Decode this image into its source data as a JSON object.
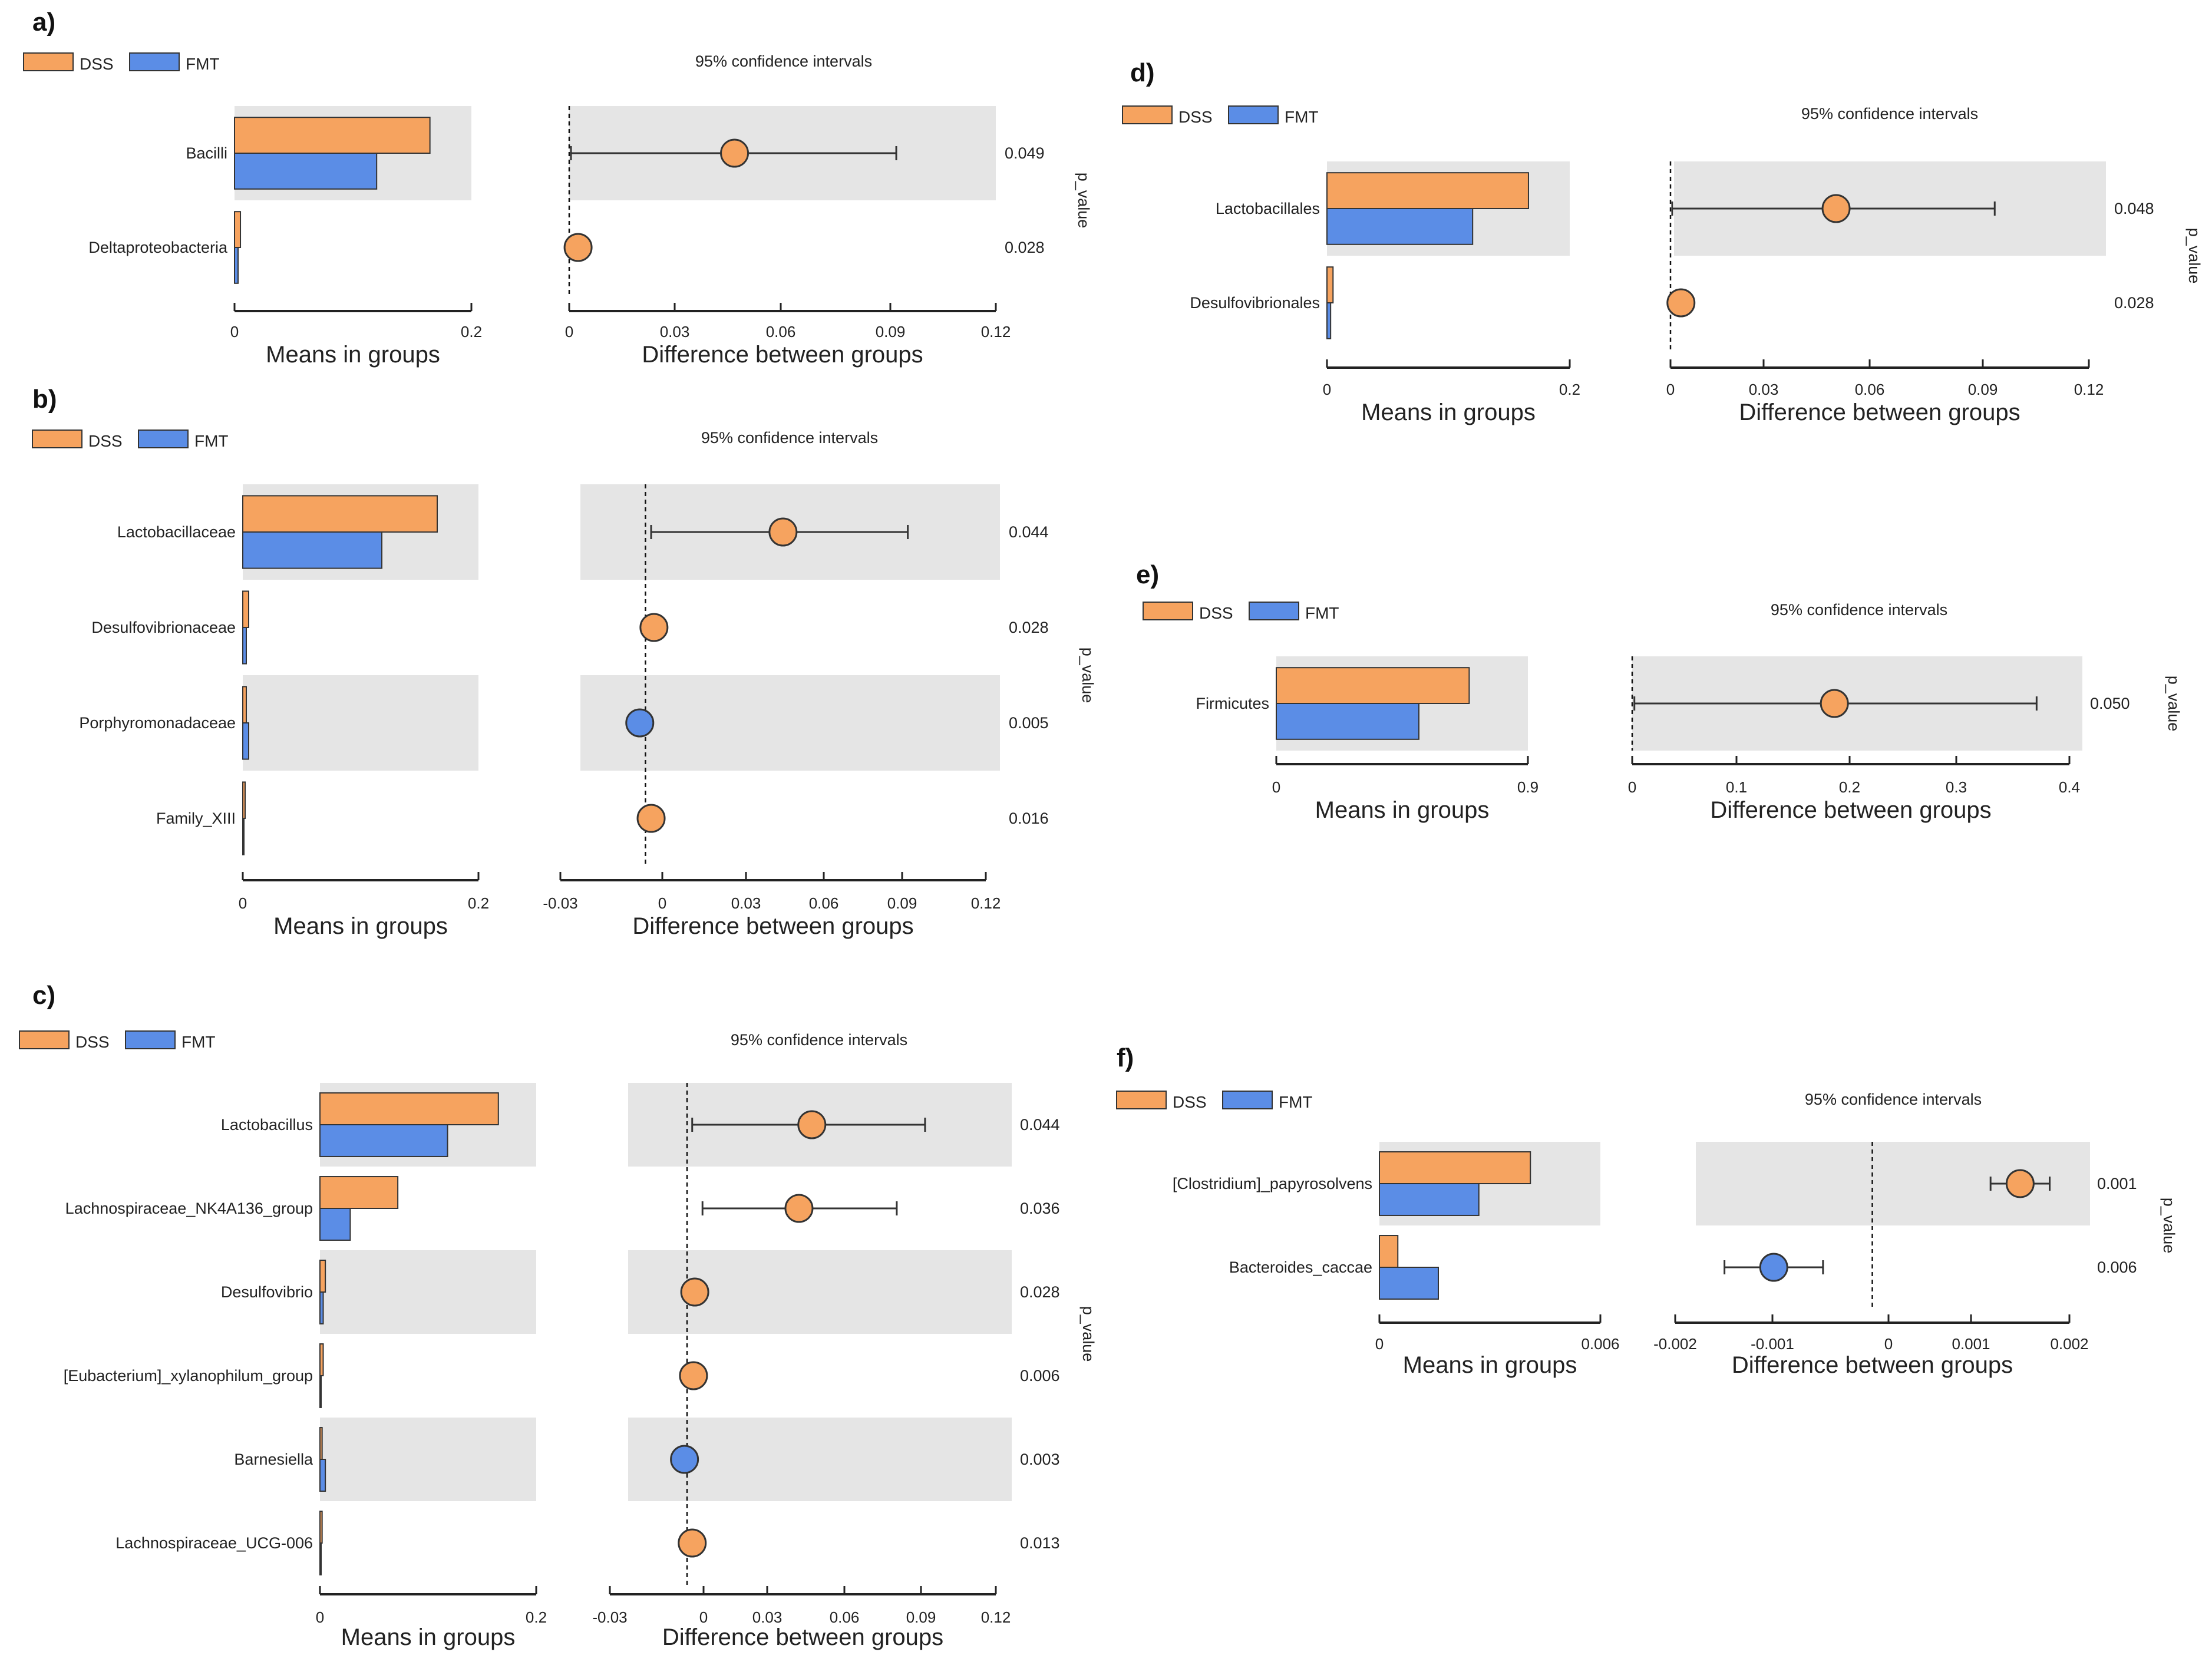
{
  "legend": {
    "dss": "DSS",
    "fmt": "FMT"
  },
  "colors": {
    "dss": "#f6a35f",
    "fmt": "#5b8de6",
    "band": "#e5e5e5",
    "axis": "#222222"
  },
  "common": {
    "ci_title": "95% confidence intervals",
    "means_xlabel": "Means in groups",
    "diff_xlabel": "Difference between groups",
    "pvalue_label": "p_value"
  },
  "chart_data": [
    {
      "panel": "a)",
      "type": "bar",
      "categories": [
        "Bacilli",
        "Deltaproteobacteria"
      ],
      "series": [
        {
          "name": "DSS",
          "values": [
            0.165,
            0.005
          ]
        },
        {
          "name": "FMT",
          "values": [
            0.12,
            0.003
          ]
        }
      ],
      "means_ticks": [
        "0",
        "0.2"
      ],
      "means_xlim": [
        0,
        0.2
      ],
      "diff": {
        "estimate": [
          0.0465,
          0.0025
        ],
        "ci_low": [
          0.0005,
          0.001
        ],
        "ci_high": [
          0.092,
          0.005
        ],
        "group": [
          "DSS",
          "DSS"
        ]
      },
      "diff_ticks": [
        "0",
        "0.03",
        "0.06",
        "0.09",
        "0.12"
      ],
      "diff_xlim": [
        0,
        0.12
      ],
      "p_values": [
        "0.049",
        "0.028"
      ]
    },
    {
      "panel": "b)",
      "type": "bar",
      "categories": [
        "Lactobacillaceae",
        "Desulfovibrionaceae",
        "Porphyromonadaceae",
        "Family_XIII"
      ],
      "series": [
        {
          "name": "DSS",
          "values": [
            0.165,
            0.005,
            0.003,
            0.002
          ]
        },
        {
          "name": "FMT",
          "values": [
            0.118,
            0.003,
            0.005,
            0.001
          ]
        }
      ],
      "means_ticks": [
        "0",
        "0.2"
      ],
      "means_xlim": [
        0,
        0.2
      ],
      "diff": {
        "estimate": [
          0.0485,
          0.003,
          -0.002,
          0.002
        ],
        "ci_low": [
          0.002,
          0.001,
          -0.004,
          0.0005
        ],
        "ci_high": [
          0.0925,
          0.005,
          0.0005,
          0.004
        ],
        "group": [
          "DSS",
          "DSS",
          "FMT",
          "DSS"
        ]
      },
      "diff_ticks": [
        "-0.03",
        "0",
        "0.03",
        "0.06",
        "0.09",
        "0.12"
      ],
      "diff_xlim": [
        -0.03,
        0.12
      ],
      "p_values": [
        "0.044",
        "0.028",
        "0.005",
        "0.016"
      ]
    },
    {
      "panel": "c)",
      "type": "bar",
      "categories": [
        "Lactobacillus",
        "Lachnospiraceae_NK4A136_group",
        "Desulfovibrio",
        "[Eubacterium]_xylanophilum_group",
        "Barnesiella",
        "Lachnospiraceae_UCG-006"
      ],
      "series": [
        {
          "name": "DSS",
          "values": [
            0.165,
            0.072,
            0.005,
            0.003,
            0.002,
            0.002
          ]
        },
        {
          "name": "FMT",
          "values": [
            0.118,
            0.028,
            0.003,
            0.001,
            0.005,
            0.001
          ]
        }
      ],
      "means_ticks": [
        "0",
        "0.2"
      ],
      "means_xlim": [
        0,
        0.2
      ],
      "diff": {
        "estimate": [
          0.0485,
          0.0435,
          0.003,
          0.0025,
          -0.001,
          0.002
        ],
        "ci_low": [
          0.002,
          0.006,
          0.001,
          0.001,
          -0.003,
          0.0005
        ],
        "ci_high": [
          0.0925,
          0.0815,
          0.005,
          0.005,
          0.001,
          0.004
        ],
        "group": [
          "DSS",
          "DSS",
          "DSS",
          "DSS",
          "FMT",
          "DSS"
        ]
      },
      "diff_ticks": [
        "-0.03",
        "0",
        "0.03",
        "0.06",
        "0.09",
        "0.12"
      ],
      "diff_xlim": [
        -0.03,
        0.12
      ],
      "p_values": [
        "0.044",
        "0.036",
        "0.028",
        "0.006",
        "0.003",
        "0.013"
      ]
    },
    {
      "panel": "d)",
      "type": "bar",
      "categories": [
        "Lactobacillales",
        "Desulfovibrionales"
      ],
      "series": [
        {
          "name": "DSS",
          "values": [
            0.166,
            0.005
          ]
        },
        {
          "name": "FMT",
          "values": [
            0.12,
            0.003
          ]
        }
      ],
      "means_ticks": [
        "0",
        "0.2"
      ],
      "means_xlim": [
        0,
        0.2
      ],
      "diff": {
        "estimate": [
          0.0475,
          0.003
        ],
        "ci_low": [
          0.0005,
          0.001
        ],
        "ci_high": [
          0.093,
          0.005
        ],
        "group": [
          "DSS",
          "DSS"
        ]
      },
      "diff_ticks": [
        "0",
        "0.03",
        "0.06",
        "0.09",
        "0.12"
      ],
      "diff_xlim": [
        0,
        0.12
      ],
      "p_values": [
        "0.048",
        "0.028"
      ]
    },
    {
      "panel": "e)",
      "type": "bar",
      "categories": [
        "Firmicutes"
      ],
      "series": [
        {
          "name": "DSS",
          "values": [
            0.69
          ]
        },
        {
          "name": "FMT",
          "values": [
            0.51
          ]
        }
      ],
      "means_ticks": [
        "0",
        "0.9"
      ],
      "means_xlim": [
        0,
        0.9
      ],
      "diff": {
        "estimate": [
          0.185
        ],
        "ci_low": [
          0.002
        ],
        "ci_high": [
          0.37
        ],
        "group": [
          "DSS"
        ]
      },
      "diff_ticks": [
        "0",
        "0.1",
        "0.2",
        "0.3",
        "0.4"
      ],
      "diff_xlim": [
        0,
        0.4
      ],
      "p_values": [
        "0.050"
      ]
    },
    {
      "panel": "f)",
      "type": "bar",
      "categories": [
        "[Clostridium]_papyrosolvens",
        "Bacteroides_caccae"
      ],
      "series": [
        {
          "name": "DSS",
          "values": [
            0.0041,
            0.0005
          ]
        },
        {
          "name": "FMT",
          "values": [
            0.0027,
            0.0016
          ]
        }
      ],
      "means_ticks": [
        "0",
        "0.006"
      ],
      "means_xlim": [
        0,
        0.006
      ],
      "diff": {
        "estimate": [
          0.0015,
          -0.001
        ],
        "ci_low": [
          0.0012,
          -0.0015
        ],
        "ci_high": [
          0.0018,
          -0.0005
        ],
        "group": [
          "DSS",
          "FMT"
        ]
      },
      "diff_ticks": [
        "-0.002",
        "-0.001",
        "0",
        "0.001",
        "0.002"
      ],
      "diff_xlim": [
        -0.002,
        0.002
      ],
      "p_values": [
        "0.001",
        "0.006"
      ]
    }
  ]
}
